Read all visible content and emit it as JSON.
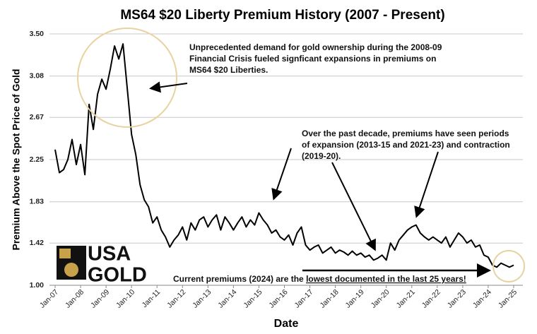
{
  "chart_data": {
    "type": "line",
    "title": "MS64 $20 Liberty Premium History (2007 - Present)",
    "x_label": "Date",
    "y_label": "Premium Above the Spot Price of Gold",
    "categories": [
      "Jan-07",
      null,
      null,
      null,
      null,
      null,
      "Jan-08",
      null,
      null,
      null,
      null,
      null,
      "Jan-09",
      null,
      null,
      null,
      null,
      null,
      "Jan-10",
      null,
      null,
      null,
      null,
      null,
      "Jan-11",
      null,
      null,
      null,
      null,
      null,
      "Jan-12",
      null,
      null,
      null,
      null,
      null,
      "Jan-13",
      null,
      null,
      null,
      null,
      null,
      "Jan-14",
      null,
      null,
      null,
      null,
      null,
      "Jan-15",
      null,
      null,
      null,
      null,
      null,
      "Jan-16",
      null,
      null,
      null,
      null,
      null,
      "Jan-17",
      null,
      null,
      null,
      null,
      null,
      "Jan-18",
      null,
      null,
      null,
      null,
      null,
      "Jan-19",
      null,
      null,
      null,
      null,
      null,
      "Jan-20",
      null,
      null,
      null,
      null,
      null,
      "Jan-21",
      null,
      null,
      null,
      null,
      null,
      "Jan-22",
      null,
      null,
      null,
      null,
      null,
      "Jan-23",
      null,
      null,
      null,
      null,
      null,
      "Jan-24",
      null,
      null,
      null,
      null,
      null,
      "Jan-25"
    ],
    "values": [
      2.35,
      2.12,
      2.15,
      2.25,
      2.45,
      2.2,
      2.4,
      2.1,
      2.8,
      2.55,
      2.9,
      3.05,
      2.95,
      3.15,
      3.38,
      3.25,
      3.4,
      2.95,
      2.5,
      2.3,
      2.0,
      1.85,
      1.78,
      1.62,
      1.68,
      1.55,
      1.48,
      1.38,
      1.45,
      1.5,
      1.58,
      1.45,
      1.62,
      1.55,
      1.65,
      1.68,
      1.58,
      1.65,
      1.7,
      1.55,
      1.68,
      1.62,
      1.55,
      1.62,
      1.68,
      1.58,
      1.65,
      1.6,
      1.72,
      1.65,
      1.6,
      1.52,
      1.55,
      1.48,
      1.45,
      1.5,
      1.4,
      1.52,
      1.58,
      1.4,
      1.35,
      1.38,
      1.4,
      1.32,
      1.35,
      1.38,
      1.32,
      1.35,
      1.33,
      1.3,
      1.34,
      1.3,
      1.32,
      1.28,
      1.3,
      1.25,
      1.27,
      1.3,
      1.25,
      1.42,
      1.35,
      1.45,
      1.5,
      1.55,
      1.58,
      1.6,
      1.52,
      1.48,
      1.45,
      1.48,
      1.45,
      1.42,
      1.48,
      1.38,
      1.45,
      1.52,
      1.48,
      1.42,
      1.45,
      1.38,
      1.4,
      1.3,
      1.28,
      1.2,
      1.18,
      1.22,
      1.2,
      1.18,
      1.2
    ],
    "color": "#000000",
    "ylim": [
      1.0,
      3.5
    ],
    "yticks": [
      {
        "value": 1,
        "label": "1.00"
      },
      1.42,
      1.83,
      2.25,
      2.67,
      3.08,
      {
        "value": 3.5,
        "label": "3.50"
      }
    ],
    "grid": true,
    "annotations": [
      [
        "Unprecedented demand for gold ownership during the 2008-09",
        "Financial Crisis fueled signficant expansions in premiums on",
        "MS64 $20 Liberties."
      ],
      [
        "Over the past decade, premiums have seen periods",
        "of expansion (2013-15 and 2021-23) and contraction",
        "(2019-20)."
      ]
    ],
    "footnote": [
      "Current premiums (2024) are the ",
      "lowest documented in the last 25 years!"
    ],
    "logo": [
      "USA",
      "GOLD"
    ]
  }
}
